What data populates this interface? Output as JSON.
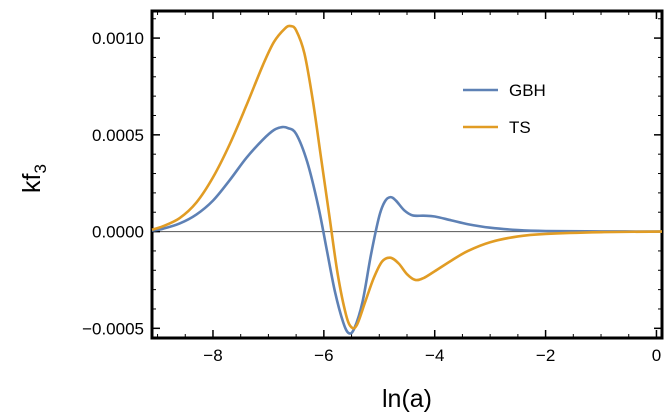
{
  "chart_data": {
    "type": "line",
    "title": "",
    "xlabel": "ln(a)",
    "ylabel": "kf",
    "ylabel_subscript": "3",
    "xlim": [
      -9.1,
      0.1
    ],
    "ylim": [
      -0.00055,
      0.00114
    ],
    "x_ticks": [
      -8,
      -6,
      -4,
      -2,
      0
    ],
    "x_tick_labels": [
      "−8",
      "−6",
      "−4",
      "−2",
      "0"
    ],
    "y_ticks": [
      -0.0005,
      0.0,
      0.0005,
      0.001
    ],
    "y_tick_labels": [
      "−0.0005",
      "0.0000",
      "0.0005",
      "0.0010"
    ],
    "zero_line": true,
    "grid": false,
    "frame": true,
    "legend_position": "upper-right",
    "series": [
      {
        "name": "GBH",
        "color": "#5E81B5",
        "points": [
          [
            -9.1,
            5e-06
          ],
          [
            -8.9,
            1.5e-05
          ],
          [
            -8.6,
            4.2e-05
          ],
          [
            -8.3,
            8.8e-05
          ],
          [
            -8.0,
            0.00016
          ],
          [
            -7.7,
            0.000265
          ],
          [
            -7.4,
            0.00038
          ],
          [
            -7.1,
            0.000475
          ],
          [
            -6.9,
            0.000525
          ],
          [
            -6.75,
            0.00054
          ],
          [
            -6.65,
            0.000535
          ],
          [
            -6.5,
            0.000505
          ],
          [
            -6.3,
            0.00036
          ],
          [
            -6.1,
            0.00013
          ],
          [
            -5.95,
            -9e-05
          ],
          [
            -5.8,
            -0.00031
          ],
          [
            -5.65,
            -0.00047
          ],
          [
            -5.55,
            -0.000525
          ],
          [
            -5.45,
            -0.0005
          ],
          [
            -5.3,
            -0.00036
          ],
          [
            -5.15,
            -0.00012
          ],
          [
            -5.0,
            8e-05
          ],
          [
            -4.9,
            0.000155
          ],
          [
            -4.8,
            0.000178
          ],
          [
            -4.7,
            0.00016
          ],
          [
            -4.55,
            0.00011
          ],
          [
            -4.4,
            8.4e-05
          ],
          [
            -4.2,
            8.2e-05
          ],
          [
            -4.0,
            7.8e-05
          ],
          [
            -3.7,
            5.8e-05
          ],
          [
            -3.4,
            3.8e-05
          ],
          [
            -3.0,
            2e-05
          ],
          [
            -2.5,
            8e-06
          ],
          [
            -2.0,
            3e-06
          ],
          [
            -1.0,
            1e-06
          ],
          [
            0.1,
            0.0
          ]
        ]
      },
      {
        "name": "TS",
        "color": "#E19C24",
        "points": [
          [
            -9.1,
            1e-05
          ],
          [
            -8.9,
            2.8e-05
          ],
          [
            -8.6,
            7e-05
          ],
          [
            -8.3,
            0.00015
          ],
          [
            -8.0,
            0.00028
          ],
          [
            -7.7,
            0.00045
          ],
          [
            -7.4,
            0.00065
          ],
          [
            -7.1,
            0.00086
          ],
          [
            -6.9,
            0.00098
          ],
          [
            -6.7,
            0.00105
          ],
          [
            -6.6,
            0.001062
          ],
          [
            -6.5,
            0.00104
          ],
          [
            -6.35,
            0.00092
          ],
          [
            -6.2,
            0.00068
          ],
          [
            -6.05,
            0.00038
          ],
          [
            -5.9,
            8e-05
          ],
          [
            -5.75,
            -0.00022
          ],
          [
            -5.6,
            -0.00043
          ],
          [
            -5.5,
            -0.000495
          ],
          [
            -5.4,
            -0.00048
          ],
          [
            -5.25,
            -0.00036
          ],
          [
            -5.1,
            -0.00024
          ],
          [
            -4.95,
            -0.000155
          ],
          [
            -4.8,
            -0.000135
          ],
          [
            -4.65,
            -0.000165
          ],
          [
            -4.5,
            -0.00022
          ],
          [
            -4.35,
            -0.00025
          ],
          [
            -4.2,
            -0.00024
          ],
          [
            -4.0,
            -0.000205
          ],
          [
            -3.7,
            -0.00015
          ],
          [
            -3.4,
            -0.0001
          ],
          [
            -3.0,
            -5.5e-05
          ],
          [
            -2.5,
            -2.5e-05
          ],
          [
            -2.0,
            -1.2e-05
          ],
          [
            -1.0,
            -3e-06
          ],
          [
            0.1,
            0.0
          ]
        ]
      }
    ]
  }
}
